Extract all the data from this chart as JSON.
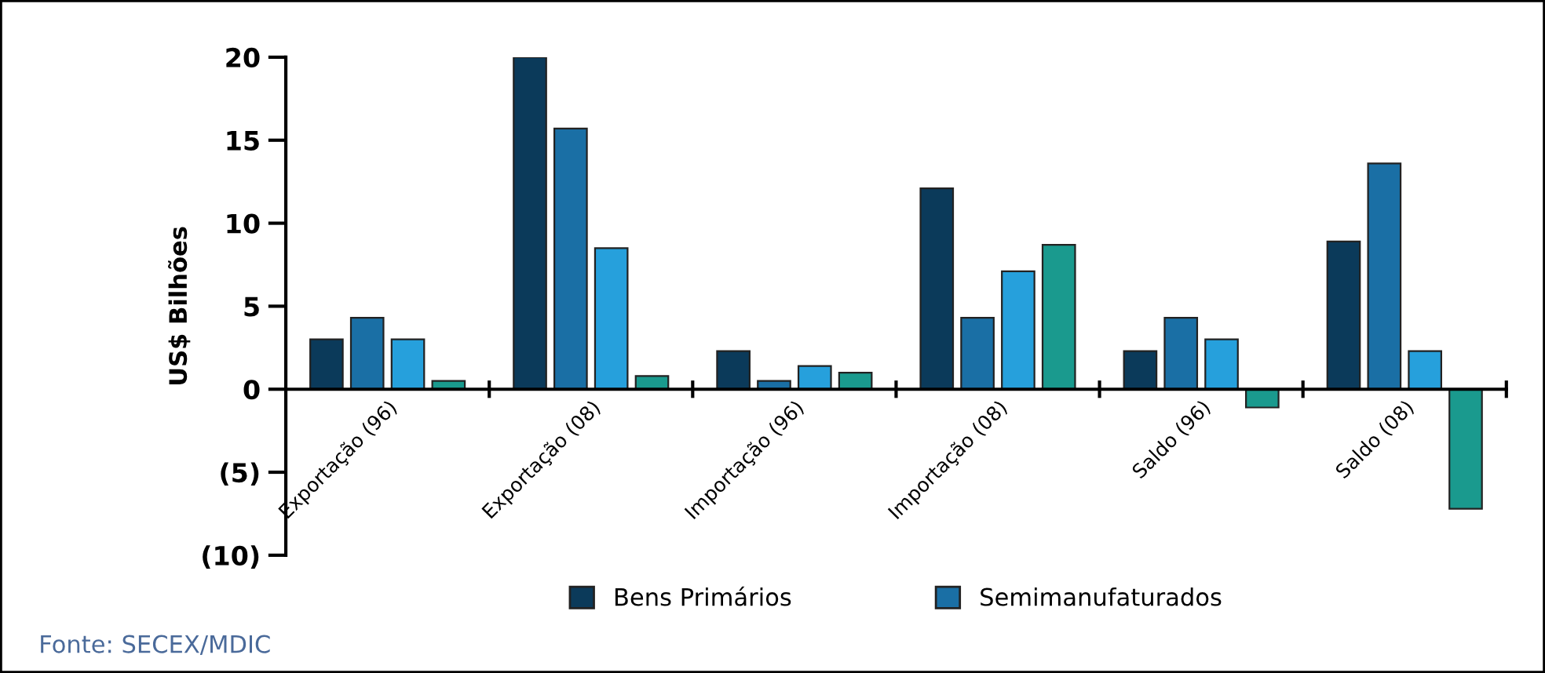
{
  "chart_data": {
    "type": "bar",
    "ylabel": "US$ Bilhões",
    "categories": [
      "Exportação (96)",
      "Exportação (08)",
      "Importação (96)",
      "Importação (08)",
      "Saldo (96)",
      "Saldo (08)"
    ],
    "series": [
      {
        "name": "Bens Primários",
        "color": "#0b3a5a",
        "values": [
          3.0,
          20.0,
          2.3,
          12.1,
          2.3,
          8.9
        ]
      },
      {
        "name": "Semimanufaturados",
        "color": "#1a6fa5",
        "values": [
          4.3,
          15.7,
          0.5,
          4.3,
          4.3,
          13.6
        ]
      },
      {
        "color": "#26a0dc",
        "values": [
          3.0,
          8.5,
          1.4,
          7.1,
          3.0,
          2.3
        ]
      },
      {
        "color": "#1a9a8e",
        "values": [
          0.5,
          0.8,
          1.0,
          8.7,
          -1.1,
          -7.2
        ]
      }
    ],
    "ylim": [
      -10,
      20
    ],
    "yticks": [
      {
        "value": -10,
        "label": "(10)"
      },
      {
        "value": -5,
        "label": "(5)"
      },
      0,
      5,
      10,
      15,
      20
    ],
    "grid": false,
    "legend": "bottom",
    "annotations": [
      "Fonte: SECEX/MDIC"
    ]
  }
}
